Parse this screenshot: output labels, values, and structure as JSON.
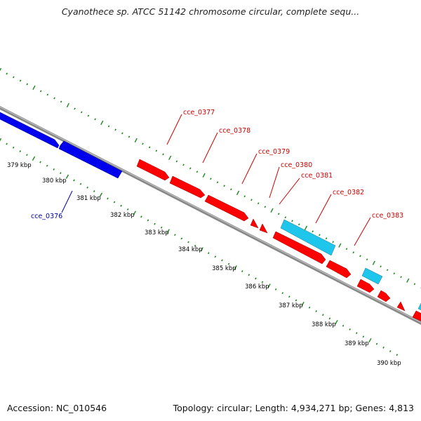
{
  "title": "Cyanothece sp. ATCC 51142 chromosome circular, complete sequ...",
  "footer": {
    "accession": "Accession: NC_010546",
    "topology": "Topology: circular; Length: 4,934,271 bp; Genes: 4,813"
  },
  "colors": {
    "forward_gene": "#ff0000",
    "reverse_gene": "#0000ee",
    "rna_gene": "#1fc6ec",
    "backbone": "#888888",
    "ticks": "#1a8a1a",
    "forward_label": "#cc0000",
    "reverse_label": "#0000aa"
  },
  "scale_labels": [
    "379 kbp",
    "380 kbp",
    "381 kbp",
    "382 kbp",
    "383 kbp",
    "384 kbp",
    "385 kbp",
    "386 kbp",
    "387 kbp",
    "388 kbp",
    "389 kbp",
    "390 kbp"
  ],
  "gene_labels": [
    {
      "name": "cce_0377",
      "strand": "forward"
    },
    {
      "name": "cce_0378",
      "strand": "forward"
    },
    {
      "name": "cce_0379",
      "strand": "forward"
    },
    {
      "name": "cce_0380",
      "strand": "forward"
    },
    {
      "name": "cce_0381",
      "strand": "forward"
    },
    {
      "name": "cce_0382",
      "strand": "forward"
    },
    {
      "name": "cce_0383",
      "strand": "forward"
    },
    {
      "name": "cce_0376",
      "strand": "reverse"
    }
  ]
}
